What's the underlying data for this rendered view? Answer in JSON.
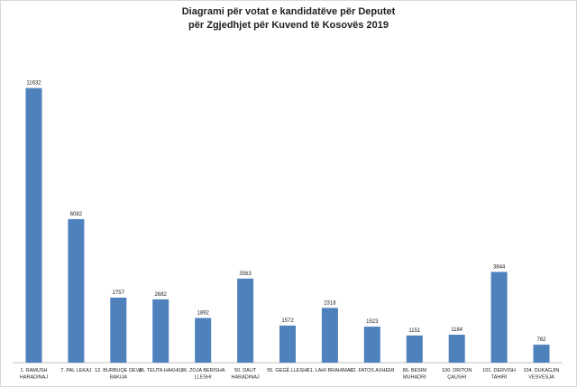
{
  "chart_data": {
    "type": "bar",
    "title_line1": "Diagrami për votat e kandidatëve për Deputet",
    "title_line2": "për Zgjedhjet për Kuvend të Kosovës 2019",
    "categories": [
      [
        "1. RAMUSH",
        "HARADINAJ"
      ],
      [
        "7. PAL LEKAJ"
      ],
      [
        "12. BURBUQE DEVA",
        "BAKIJA"
      ],
      [
        "15. TEUTA HAKHIU"
      ],
      [
        "36. ZOJA BERISHA",
        "LLESHI"
      ],
      [
        "50. DAUT",
        "HARADINAJ"
      ],
      [
        "55. GEGË LLESHI"
      ],
      [
        "61. LAHI BRAHIMAJ"
      ],
      [
        "62. FATOS AXHEMI"
      ],
      [
        "86. BESIM",
        "MUHADRI"
      ],
      [
        "100. DRITON",
        "ÇAUSHI"
      ],
      [
        "101. DERVISH",
        "TAHIRI"
      ],
      [
        "104. DUKAGJIN",
        "VESVESJA"
      ]
    ],
    "values": [
      11632,
      6082,
      2757,
      2682,
      1892,
      3563,
      1572,
      2318,
      1523,
      1151,
      1184,
      3844,
      762
    ],
    "ylim": [
      0,
      12000
    ],
    "bar_color": "#4f81bd",
    "grid": false,
    "legend": "none"
  }
}
